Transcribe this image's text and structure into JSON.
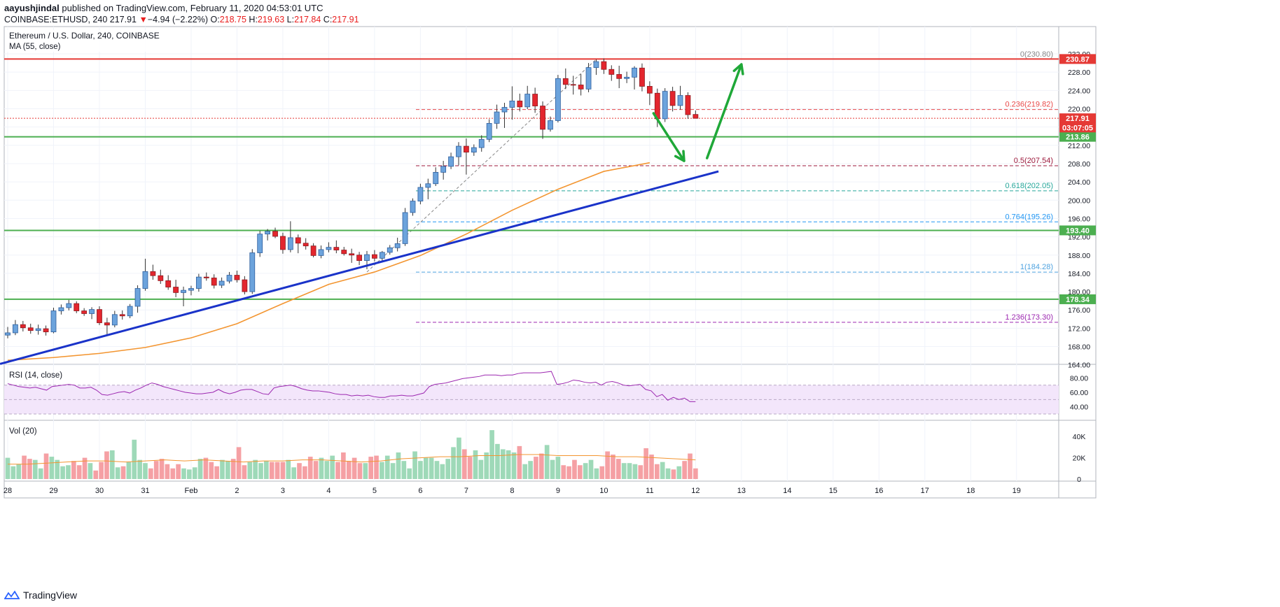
{
  "header": {
    "author": "aayushjindal",
    "published": "published on TradingView.com, February 11, 2020 04:53:01 UTC",
    "symbol": "COINBASE:ETHUSD, 240",
    "last": "217.91",
    "change_arrow": "▼",
    "change": "−4.94 (−2.22%)",
    "o_label": "O:",
    "o": "218.75",
    "h_label": "H:",
    "h": "219.63",
    "l_label": "L:",
    "l": "217.84",
    "c_label": "C:",
    "c": "217.91"
  },
  "footer": {
    "brand": "TradingView",
    "logo_icon": "tradingview-logo-icon"
  },
  "colors": {
    "up": "#6ca3dc",
    "down": "#e3262e",
    "ma": "#f39530",
    "trend": "#1a33c9",
    "support": "#4caf50",
    "arrow": "#1fa838",
    "rsi": "#9c27b0",
    "vol_up": "#9ed9b8",
    "vol_down": "#f5a0a4"
  },
  "chart_data": {
    "type": "candlestick",
    "title": "Ethereum / U.S. Dollar, 240, COINBASE",
    "indicator_label": "MA (55, close)",
    "y_ticks": [
      "164.00",
      "168.00",
      "172.00",
      "176.00",
      "180.00",
      "184.00",
      "188.00",
      "192.00",
      "196.00",
      "200.00",
      "204.00",
      "208.00",
      "212.00",
      "216.00",
      "220.00",
      "224.00",
      "228.00",
      "232.00"
    ],
    "ylim": [
      162,
      233
    ],
    "x_ticks": [
      {
        "label": "28",
        "t": 0
      },
      {
        "label": "29",
        "t": 6
      },
      {
        "label": "30",
        "t": 12
      },
      {
        "label": "31",
        "t": 18
      },
      {
        "label": "Feb",
        "t": 24
      },
      {
        "label": "2",
        "t": 30
      },
      {
        "label": "3",
        "t": 36
      },
      {
        "label": "4",
        "t": 42
      },
      {
        "label": "5",
        "t": 48
      },
      {
        "label": "6",
        "t": 54
      },
      {
        "label": "7",
        "t": 60
      },
      {
        "label": "8",
        "t": 66
      },
      {
        "label": "9",
        "t": 72
      },
      {
        "label": "10",
        "t": 78
      },
      {
        "label": "11",
        "t": 84
      },
      {
        "label": "12",
        "t": 90
      },
      {
        "label": "13",
        "t": 96
      },
      {
        "label": "14",
        "t": 102
      },
      {
        "label": "15",
        "t": 108
      },
      {
        "label": "16",
        "t": 114
      },
      {
        "label": "17",
        "t": 120
      },
      {
        "label": "18",
        "t": 126
      },
      {
        "label": "19",
        "t": 132
      }
    ],
    "candles": [
      [
        170.5,
        172.3,
        169.8,
        171.0
      ],
      [
        171.0,
        173.8,
        170.5,
        172.8
      ],
      [
        172.8,
        173.6,
        171.3,
        172.1
      ],
      [
        172.1,
        173.0,
        170.8,
        171.5
      ],
      [
        171.5,
        172.8,
        170.6,
        171.9
      ],
      [
        171.9,
        172.6,
        170.4,
        171.2
      ],
      [
        171.2,
        176.5,
        170.9,
        175.8
      ],
      [
        175.8,
        177.2,
        175.0,
        176.5
      ],
      [
        176.5,
        178.2,
        175.9,
        177.4
      ],
      [
        177.4,
        177.9,
        175.3,
        175.8
      ],
      [
        175.8,
        176.4,
        174.7,
        175.2
      ],
      [
        175.2,
        176.6,
        174.0,
        176.1
      ],
      [
        176.1,
        176.8,
        172.7,
        173.2
      ],
      [
        173.2,
        174.3,
        170.6,
        172.7
      ],
      [
        172.7,
        175.8,
        172.2,
        175.0
      ],
      [
        175.0,
        175.9,
        173.9,
        174.7
      ],
      [
        174.7,
        177.3,
        174.2,
        176.8
      ],
      [
        176.8,
        181.4,
        175.4,
        180.7
      ],
      [
        180.7,
        187.2,
        180.2,
        184.4
      ],
      [
        184.4,
        185.9,
        182.6,
        183.5
      ],
      [
        183.5,
        184.8,
        181.7,
        182.4
      ],
      [
        182.4,
        183.6,
        180.4,
        181.0
      ],
      [
        181.0,
        182.6,
        178.8,
        179.8
      ],
      [
        179.8,
        181.1,
        176.8,
        180.3
      ],
      [
        180.3,
        181.3,
        179.2,
        180.7
      ],
      [
        180.7,
        183.9,
        180.0,
        183.2
      ],
      [
        183.2,
        184.2,
        182.4,
        183.0
      ],
      [
        183.0,
        183.8,
        180.7,
        181.4
      ],
      [
        181.4,
        183.1,
        180.8,
        182.3
      ],
      [
        182.3,
        184.3,
        181.8,
        183.6
      ],
      [
        183.6,
        184.6,
        182.0,
        182.6
      ],
      [
        182.6,
        183.4,
        179.4,
        180.0
      ],
      [
        180.0,
        189.3,
        179.5,
        188.5
      ],
      [
        188.5,
        193.3,
        187.6,
        192.6
      ],
      [
        192.6,
        193.7,
        191.2,
        193.2
      ],
      [
        193.2,
        194.0,
        191.7,
        192.1
      ],
      [
        192.1,
        192.9,
        188.3,
        189.2
      ],
      [
        189.2,
        195.4,
        188.6,
        191.8
      ],
      [
        191.8,
        192.5,
        188.4,
        190.6
      ],
      [
        190.6,
        191.7,
        189.2,
        190.0
      ],
      [
        190.0,
        190.6,
        187.5,
        187.9
      ],
      [
        187.9,
        190.1,
        187.3,
        189.2
      ],
      [
        189.2,
        190.8,
        188.6,
        189.7
      ],
      [
        189.7,
        191.2,
        188.4,
        189.1
      ],
      [
        189.1,
        189.8,
        187.9,
        188.3
      ],
      [
        188.3,
        189.4,
        186.3,
        188.0
      ],
      [
        188.0,
        188.7,
        185.8,
        186.8
      ],
      [
        186.8,
        188.9,
        184.9,
        188.1
      ],
      [
        188.1,
        189.1,
        186.6,
        187.3
      ],
      [
        187.3,
        188.9,
        186.8,
        188.6
      ],
      [
        188.6,
        190.2,
        188.1,
        189.6
      ],
      [
        189.6,
        191.8,
        188.8,
        190.5
      ],
      [
        190.5,
        198.3,
        190.0,
        197.3
      ],
      [
        197.3,
        200.4,
        196.6,
        199.8
      ],
      [
        199.8,
        203.6,
        199.1,
        202.8
      ],
      [
        202.8,
        204.7,
        200.2,
        203.6
      ],
      [
        203.6,
        207.2,
        203.1,
        206.1
      ],
      [
        206.1,
        208.6,
        204.5,
        207.4
      ],
      [
        207.4,
        210.4,
        206.8,
        209.5
      ],
      [
        209.5,
        212.7,
        207.6,
        211.8
      ],
      [
        211.8,
        213.5,
        205.6,
        210.5
      ],
      [
        210.5,
        212.2,
        209.7,
        211.5
      ],
      [
        211.5,
        214.2,
        210.6,
        213.3
      ],
      [
        213.3,
        217.7,
        212.7,
        216.8
      ],
      [
        216.8,
        220.9,
        215.6,
        219.3
      ],
      [
        219.3,
        221.3,
        215.8,
        220.3
      ],
      [
        220.3,
        224.9,
        217.6,
        221.7
      ],
      [
        221.7,
        223.3,
        219.4,
        220.4
      ],
      [
        220.4,
        225.0,
        219.9,
        223.2
      ],
      [
        223.2,
        224.6,
        219.1,
        220.6
      ],
      [
        220.6,
        221.6,
        213.4,
        215.5
      ],
      [
        215.5,
        218.3,
        215.0,
        217.4
      ],
      [
        217.4,
        227.4,
        217.0,
        226.6
      ],
      [
        226.6,
        228.8,
        224.3,
        225.3
      ],
      [
        225.3,
        227.2,
        223.1,
        225.2
      ],
      [
        225.2,
        227.6,
        222.9,
        224.3
      ],
      [
        224.3,
        230.0,
        223.6,
        229.0
      ],
      [
        229.0,
        230.8,
        227.4,
        230.3
      ],
      [
        230.3,
        231.0,
        227.6,
        228.6
      ],
      [
        228.6,
        229.5,
        226.1,
        227.5
      ],
      [
        227.5,
        229.4,
        224.5,
        226.6
      ],
      [
        226.6,
        228.1,
        225.6,
        226.9
      ],
      [
        226.9,
        229.3,
        224.2,
        228.9
      ],
      [
        228.9,
        229.9,
        223.8,
        224.9
      ],
      [
        224.9,
        226.0,
        220.8,
        223.4
      ],
      [
        223.4,
        224.4,
        216.0,
        217.8
      ],
      [
        217.8,
        224.5,
        217.1,
        223.8
      ],
      [
        223.8,
        224.8,
        219.4,
        220.7
      ],
      [
        220.7,
        225.0,
        219.8,
        222.9
      ],
      [
        222.9,
        223.6,
        217.8,
        218.7
      ],
      [
        218.75,
        219.63,
        217.84,
        217.91
      ]
    ],
    "ma55": [
      [
        0,
        165.0
      ],
      [
        6,
        165.6
      ],
      [
        12,
        166.5
      ],
      [
        18,
        167.8
      ],
      [
        24,
        169.9
      ],
      [
        30,
        173.0
      ],
      [
        36,
        177.4
      ],
      [
        42,
        181.6
      ],
      [
        48,
        184.3
      ],
      [
        54,
        187.9
      ],
      [
        60,
        192.6
      ],
      [
        66,
        197.8
      ],
      [
        72,
        202.4
      ],
      [
        78,
        206.3
      ],
      [
        84,
        208.2
      ]
    ],
    "trendline": {
      "from": [
        -1,
        164.2
      ],
      "to": [
        93,
        206.3
      ]
    },
    "horizontal_levels": [
      {
        "label": "230.87",
        "value": 230.87,
        "type": "resistance"
      },
      {
        "label": "213.86",
        "value": 213.86,
        "type": "support"
      },
      {
        "label": "193.40",
        "value": 193.4,
        "type": "support"
      },
      {
        "label": "178.34",
        "value": 178.34,
        "type": "support"
      }
    ],
    "price_labels": [
      {
        "label": "217.91",
        "value": 217.91
      },
      {
        "label": "03:07:05",
        "value": 215.9
      }
    ],
    "fibonacci": [
      {
        "level": "0",
        "value": 230.8,
        "label": "0(230.80)",
        "color": "#888888"
      },
      {
        "level": "0.236",
        "value": 219.82,
        "label": "0.236(219.82)",
        "color": "#e84a4a"
      },
      {
        "level": "0.5",
        "value": 207.54,
        "label": "0.5(207.54)",
        "color": "#9c1a3c"
      },
      {
        "level": "0.618",
        "value": 202.05,
        "label": "0.618(202.05)",
        "color": "#26a69a"
      },
      {
        "level": "0.764",
        "value": 195.26,
        "label": "0.764(195.26)",
        "color": "#2196f3"
      },
      {
        "level": "1",
        "value": 184.28,
        "label": "1(184.28)",
        "color": "#4fa3e0"
      },
      {
        "level": "1.236",
        "value": 173.3,
        "label": "1.236(173.30)",
        "color": "#9c27b0"
      }
    ],
    "rsi": {
      "label": "RSI (14, close)",
      "y_ticks": [
        "40.00",
        "60.00",
        "80.00"
      ],
      "ylim": [
        28,
        92
      ],
      "band": [
        30,
        70
      ],
      "values": [
        72,
        70,
        68,
        67,
        66,
        67,
        65,
        63,
        68,
        69,
        70,
        71,
        70,
        66,
        66,
        67,
        63,
        57,
        56,
        58,
        60,
        61,
        59,
        63,
        66,
        70,
        73,
        71,
        68,
        66,
        64,
        62,
        60,
        59,
        58,
        58,
        59,
        60,
        64,
        60,
        58,
        60,
        63,
        64,
        64,
        61,
        58,
        57,
        66,
        68,
        69,
        70,
        68,
        65,
        63,
        62,
        62,
        61,
        60,
        58,
        57,
        57,
        55,
        56,
        55,
        56,
        54,
        53,
        53,
        55,
        55,
        56,
        55,
        55,
        57,
        59,
        68,
        71,
        72,
        73,
        75,
        77,
        79,
        80,
        81,
        82,
        84,
        84,
        84,
        83,
        84,
        84,
        86,
        87,
        87,
        87,
        87,
        88,
        89,
        71,
        72,
        74,
        77,
        76,
        74,
        73,
        74,
        70,
        74,
        75,
        73,
        70,
        69,
        70,
        71,
        64,
        62,
        54,
        57,
        49,
        53,
        50,
        52,
        47,
        47
      ]
    },
    "volume": {
      "label": "Vol (20)",
      "y_ticks": [
        "0",
        "20K",
        "40K"
      ],
      "ylim": [
        0,
        50
      ],
      "bars": [
        20,
        12,
        14,
        22,
        19,
        18,
        10,
        24,
        21,
        18,
        12,
        13,
        17,
        13,
        20,
        15,
        8,
        16,
        26,
        27,
        11,
        12,
        16,
        37,
        18,
        15,
        10,
        17,
        19,
        14,
        10,
        14,
        10,
        9,
        11,
        19,
        20,
        16,
        12,
        18,
        17,
        19,
        30,
        13,
        16,
        18,
        15,
        17,
        16,
        16,
        16,
        18,
        11,
        15,
        12,
        21,
        17,
        20,
        17,
        22,
        16,
        25,
        17,
        20,
        15,
        15,
        21,
        22,
        16,
        22,
        15,
        25,
        17,
        10,
        26,
        17,
        20,
        20,
        17,
        14,
        19,
        30,
        39,
        28,
        21,
        27,
        18,
        25,
        46,
        33,
        28,
        27,
        25,
        31,
        14,
        17,
        21,
        24,
        32,
        18,
        21,
        13,
        12,
        18,
        13,
        15,
        18,
        10,
        12,
        26,
        23,
        19,
        15,
        15,
        14,
        13,
        29,
        23,
        14,
        16,
        10,
        9,
        12,
        17,
        24,
        10
      ],
      "ma": [
        14,
        14,
        15,
        16,
        17,
        17,
        16,
        17,
        18,
        17,
        18,
        17,
        16,
        17,
        17,
        18,
        18,
        17,
        16,
        17,
        19,
        20,
        21,
        21,
        22,
        22,
        23,
        23,
        22,
        22,
        22,
        21,
        21,
        20,
        19,
        18
      ]
    },
    "annotations": [
      {
        "type": "arrow",
        "direction": "down",
        "from": [
          84.5,
          219.0
        ],
        "to": [
          88.5,
          208.6
        ]
      },
      {
        "type": "arrow",
        "direction": "up",
        "from": [
          91.5,
          209.2
        ],
        "to": [
          96,
          229.7
        ]
      }
    ]
  }
}
